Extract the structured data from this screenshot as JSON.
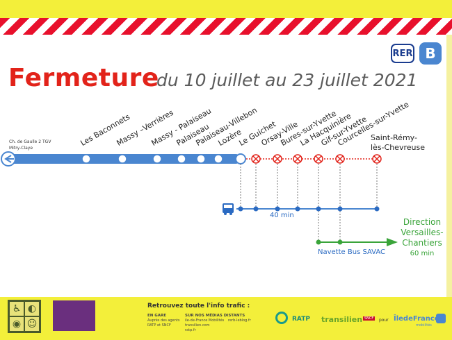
{
  "logos": {
    "rer": "RER",
    "line": "B"
  },
  "title": {
    "main": "Fermeture",
    "dates": "du 10 juillet au 23 juillet 2021"
  },
  "terminus": [
    "Ch. de Gaulle 2 TGV",
    "Mitry-Claye"
  ],
  "stations_open": [
    "Les Baconnets",
    "Massy –Verrières",
    "Massy - Palaiseau",
    "Palaiseau",
    "Palaiseau-Villebon",
    "Lozère"
  ],
  "stations_closed": [
    "Le Guichet",
    "Orsay-Ville",
    "Bures-sur-Yvette",
    "La Hacquinière",
    "Gif-sur-Yvette",
    "Courcelles-sur-Yvette"
  ],
  "last_station": [
    "Saint-Rémy-",
    "lès-Chevreuse"
  ],
  "bus": {
    "duration": "40 min"
  },
  "shuttle": {
    "name": "Navette Bus SAVAC"
  },
  "direction": {
    "label": [
      "Direction",
      "Versailles-",
      "Chantiers"
    ],
    "duration": "60 min"
  },
  "footer": {
    "info_title": "Retrouvez toute l'info trafic :",
    "col1_head": "EN GARE",
    "col1_lines": [
      "Auprès des agents",
      "RATP et SNCF"
    ],
    "col2_head": "SUR NOS MÉDIAS DISTANTS",
    "col2_lines": [
      "ile-de-France Mobilités",
      "transilien.com",
      "ratp.fr"
    ],
    "col3_lines": [
      "rerb-leblog.fr"
    ],
    "pour": "pour",
    "brand_ratp": "RATP",
    "brand_transilien": "transilien",
    "brand_sncf": "SNCF",
    "brand_idf": "ÎledeFrance",
    "brand_idf_sub": "mobilités"
  },
  "colors": {
    "title_red": "#e2231a",
    "line_blue": "#4a86d0",
    "bus_blue": "#2a6ac2",
    "shuttle_green": "#3aa43a",
    "band_yellow": "#f3ef3a"
  }
}
